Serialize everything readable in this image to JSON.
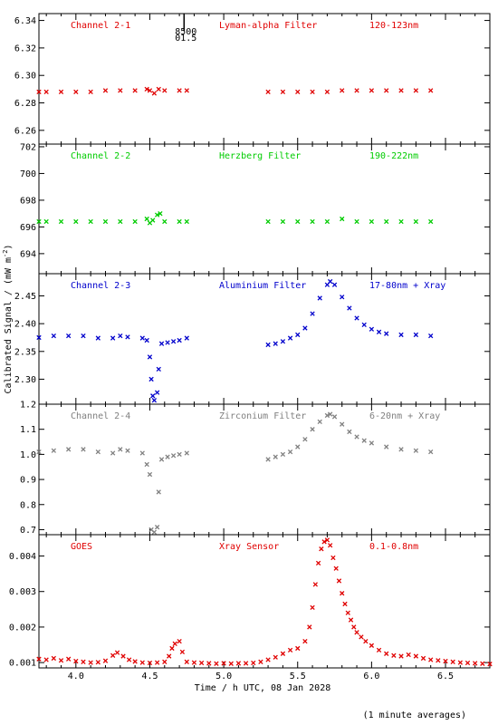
{
  "figure": {
    "ylabel": "Calibrated Signal / (mW m",
    "ylabel_sup": "-2",
    "ylabel_tail": ")",
    "xlabel": "Time / h UTC, 08 Jan 2028",
    "footnote": "(1 minute averages)",
    "marker_text_top": "8500",
    "marker_text_bottom": "01.5",
    "marker_x": 4.75
  },
  "chart_data": [
    {
      "type": "scatter",
      "left_label": "Channel 2-1",
      "mid_label": "Lyman-alpha Filter",
      "right_label": "120-123nm",
      "color": "#e00000",
      "marker": "cross",
      "xlim": [
        3.75,
        6.8
      ],
      "ylim": [
        6.25,
        6.345
      ],
      "yticks": [
        6.26,
        6.28,
        6.3,
        6.32,
        6.34
      ],
      "ytick_labels": [
        "6.26",
        "6.28",
        "6.30",
        "6.32",
        "6.34"
      ],
      "series": [
        {
          "values": [
            [
              3.75,
              6.288
            ],
            [
              3.8,
              6.288
            ],
            [
              3.9,
              6.288
            ],
            [
              4.0,
              6.288
            ],
            [
              4.1,
              6.288
            ],
            [
              4.2,
              6.289
            ],
            [
              4.3,
              6.289
            ],
            [
              4.4,
              6.289
            ],
            [
              4.48,
              6.29
            ],
            [
              4.5,
              6.289
            ],
            [
              4.53,
              6.287
            ],
            [
              4.56,
              6.29
            ],
            [
              4.6,
              6.289
            ],
            [
              4.7,
              6.289
            ],
            [
              4.75,
              6.289
            ],
            [
              5.3,
              6.288
            ],
            [
              5.4,
              6.288
            ],
            [
              5.5,
              6.288
            ],
            [
              5.6,
              6.288
            ],
            [
              5.7,
              6.288
            ],
            [
              5.8,
              6.289
            ],
            [
              5.9,
              6.289
            ],
            [
              6.0,
              6.289
            ],
            [
              6.1,
              6.289
            ],
            [
              6.2,
              6.289
            ],
            [
              6.3,
              6.289
            ],
            [
              6.4,
              6.289
            ]
          ]
        }
      ]
    },
    {
      "type": "scatter",
      "left_label": "Channel 2-2",
      "mid_label": "Herzberg Filter",
      "right_label": "190-222nm",
      "color": "#00cc00",
      "marker": "cross",
      "xlim": [
        3.75,
        6.8
      ],
      "ylim": [
        692.5,
        702.2
      ],
      "yticks": [
        694,
        696,
        698,
        700,
        702
      ],
      "ytick_labels": [
        "694",
        "696",
        "698",
        "700",
        "702"
      ],
      "series": [
        {
          "values": [
            [
              3.75,
              696.4
            ],
            [
              3.8,
              696.4
            ],
            [
              3.9,
              696.4
            ],
            [
              4.0,
              696.4
            ],
            [
              4.1,
              696.4
            ],
            [
              4.2,
              696.4
            ],
            [
              4.3,
              696.4
            ],
            [
              4.4,
              696.4
            ],
            [
              4.48,
              696.6
            ],
            [
              4.5,
              696.3
            ],
            [
              4.52,
              696.5
            ],
            [
              4.55,
              696.9
            ],
            [
              4.57,
              697.0
            ],
            [
              4.6,
              696.4
            ],
            [
              4.7,
              696.4
            ],
            [
              4.75,
              696.4
            ],
            [
              5.3,
              696.4
            ],
            [
              5.4,
              696.4
            ],
            [
              5.5,
              696.4
            ],
            [
              5.6,
              696.4
            ],
            [
              5.7,
              696.4
            ],
            [
              5.8,
              696.6
            ],
            [
              5.9,
              696.4
            ],
            [
              6.0,
              696.4
            ],
            [
              6.1,
              696.4
            ],
            [
              6.2,
              696.4
            ],
            [
              6.3,
              696.4
            ],
            [
              6.4,
              696.4
            ]
          ]
        }
      ]
    },
    {
      "type": "scatter",
      "left_label": "Channel 2-3",
      "mid_label": "Aluminium Filter",
      "right_label": "17-80nm + Xray",
      "color": "#0000cc",
      "marker": "cross",
      "xlim": [
        3.75,
        6.8
      ],
      "ylim": [
        2.255,
        2.49
      ],
      "yticks": [
        2.3,
        2.35,
        2.4,
        2.45
      ],
      "ytick_labels": [
        "2.30",
        "2.35",
        "2.40",
        "2.45"
      ],
      "series": [
        {
          "values": [
            [
              3.75,
              2.375
            ],
            [
              3.85,
              2.378
            ],
            [
              3.95,
              2.378
            ],
            [
              4.05,
              2.378
            ],
            [
              4.15,
              2.374
            ],
            [
              4.25,
              2.374
            ],
            [
              4.3,
              2.378
            ],
            [
              4.35,
              2.376
            ],
            [
              4.45,
              2.374
            ],
            [
              4.48,
              2.37
            ],
            [
              4.5,
              2.34
            ],
            [
              4.51,
              2.3
            ],
            [
              4.52,
              2.27
            ],
            [
              4.53,
              2.262
            ],
            [
              4.55,
              2.276
            ],
            [
              4.56,
              2.318
            ],
            [
              4.58,
              2.364
            ],
            [
              4.62,
              2.366
            ],
            [
              4.66,
              2.368
            ],
            [
              4.7,
              2.37
            ],
            [
              4.75,
              2.374
            ],
            [
              5.3,
              2.362
            ],
            [
              5.35,
              2.364
            ],
            [
              5.4,
              2.368
            ],
            [
              5.45,
              2.374
            ],
            [
              5.5,
              2.38
            ],
            [
              5.55,
              2.392
            ],
            [
              5.6,
              2.418
            ],
            [
              5.65,
              2.446
            ],
            [
              5.7,
              2.47
            ],
            [
              5.72,
              2.476
            ],
            [
              5.75,
              2.47
            ],
            [
              5.8,
              2.448
            ],
            [
              5.85,
              2.428
            ],
            [
              5.9,
              2.41
            ],
            [
              5.95,
              2.398
            ],
            [
              6.0,
              2.39
            ],
            [
              6.05,
              2.385
            ],
            [
              6.1,
              2.382
            ],
            [
              6.2,
              2.38
            ],
            [
              6.3,
              2.38
            ],
            [
              6.4,
              2.378
            ]
          ]
        }
      ]
    },
    {
      "type": "scatter",
      "left_label": "Channel 2-4",
      "mid_label": "Zirconium Filter",
      "right_label": "6-20nm + Xray",
      "color": "#808080",
      "marker": "cross",
      "xlim": [
        3.75,
        6.8
      ],
      "ylim": [
        0.68,
        1.2
      ],
      "yticks": [
        0.7,
        0.8,
        0.9,
        1.0,
        1.1,
        1.2
      ],
      "ytick_labels": [
        "0.7",
        "0.8",
        "0.9",
        "1.0",
        "1.1",
        "1.2"
      ],
      "series": [
        {
          "values": [
            [
              3.75,
              1.01
            ],
            [
              3.85,
              1.015
            ],
            [
              3.95,
              1.02
            ],
            [
              4.05,
              1.02
            ],
            [
              4.15,
              1.01
            ],
            [
              4.25,
              1.005
            ],
            [
              4.3,
              1.02
            ],
            [
              4.35,
              1.015
            ],
            [
              4.45,
              1.005
            ],
            [
              4.48,
              0.96
            ],
            [
              4.5,
              0.92
            ],
            [
              4.51,
              0.7
            ],
            [
              4.53,
              0.69
            ],
            [
              4.55,
              0.71
            ],
            [
              4.56,
              0.85
            ],
            [
              4.58,
              0.98
            ],
            [
              4.62,
              0.99
            ],
            [
              4.66,
              0.995
            ],
            [
              4.7,
              1.0
            ],
            [
              4.75,
              1.005
            ],
            [
              5.3,
              0.98
            ],
            [
              5.35,
              0.99
            ],
            [
              5.4,
              1.0
            ],
            [
              5.45,
              1.01
            ],
            [
              5.5,
              1.03
            ],
            [
              5.55,
              1.06
            ],
            [
              5.6,
              1.1
            ],
            [
              5.65,
              1.13
            ],
            [
              5.7,
              1.155
            ],
            [
              5.72,
              1.16
            ],
            [
              5.75,
              1.15
            ],
            [
              5.8,
              1.12
            ],
            [
              5.85,
              1.09
            ],
            [
              5.9,
              1.07
            ],
            [
              5.95,
              1.055
            ],
            [
              6.0,
              1.045
            ],
            [
              6.1,
              1.03
            ],
            [
              6.2,
              1.02
            ],
            [
              6.3,
              1.015
            ],
            [
              6.4,
              1.01
            ]
          ]
        }
      ]
    },
    {
      "type": "scatter",
      "left_label": "GOES",
      "mid_label": "Xray Sensor",
      "right_label": "0.1-0.8nm",
      "color": "#e00000",
      "marker": "cross",
      "xlim": [
        3.75,
        6.8
      ],
      "ylim": [
        0.00085,
        0.0046
      ],
      "yticks": [
        0.001,
        0.002,
        0.003,
        0.004
      ],
      "ytick_labels": [
        "0.001",
        "0.002",
        "0.003",
        "0.004"
      ],
      "xticks": [
        4.0,
        4.5,
        5.0,
        5.5,
        6.0,
        6.5
      ],
      "xtick_labels": [
        "4.0",
        "4.5",
        "5.0",
        "5.5",
        "6.0",
        "6.5"
      ],
      "series": [
        {
          "values": [
            [
              3.75,
              0.0011
            ],
            [
              3.8,
              0.00108
            ],
            [
              3.85,
              0.00112
            ],
            [
              3.9,
              0.00106
            ],
            [
              3.95,
              0.0011
            ],
            [
              4.0,
              0.00104
            ],
            [
              4.05,
              0.00102
            ],
            [
              4.1,
              0.001
            ],
            [
              4.15,
              0.00101
            ],
            [
              4.2,
              0.00105
            ],
            [
              4.25,
              0.0012
            ],
            [
              4.28,
              0.00128
            ],
            [
              4.32,
              0.00118
            ],
            [
              4.36,
              0.00108
            ],
            [
              4.4,
              0.00103
            ],
            [
              4.45,
              0.001
            ],
            [
              4.5,
              0.00099
            ],
            [
              4.55,
              0.001
            ],
            [
              4.6,
              0.00102
            ],
            [
              4.63,
              0.00118
            ],
            [
              4.65,
              0.0014
            ],
            [
              4.67,
              0.00153
            ],
            [
              4.7,
              0.0016
            ],
            [
              4.72,
              0.0013
            ],
            [
              4.75,
              0.00102
            ],
            [
              4.8,
              0.001
            ],
            [
              4.85,
              0.00099
            ],
            [
              4.9,
              0.00098
            ],
            [
              4.95,
              0.00097
            ],
            [
              5.0,
              0.00098
            ],
            [
              5.05,
              0.00097
            ],
            [
              5.1,
              0.00098
            ],
            [
              5.15,
              0.00098
            ],
            [
              5.2,
              0.00099
            ],
            [
              5.25,
              0.00102
            ],
            [
              5.3,
              0.00108
            ],
            [
              5.35,
              0.00115
            ],
            [
              5.4,
              0.00125
            ],
            [
              5.45,
              0.00135
            ],
            [
              5.5,
              0.0014
            ],
            [
              5.55,
              0.0016
            ],
            [
              5.58,
              0.002
            ],
            [
              5.6,
              0.00255
            ],
            [
              5.62,
              0.0032
            ],
            [
              5.64,
              0.0038
            ],
            [
              5.66,
              0.0042
            ],
            [
              5.68,
              0.0044
            ],
            [
              5.7,
              0.00445
            ],
            [
              5.72,
              0.0043
            ],
            [
              5.74,
              0.00395
            ],
            [
              5.76,
              0.00365
            ],
            [
              5.78,
              0.0033
            ],
            [
              5.8,
              0.00295
            ],
            [
              5.82,
              0.00265
            ],
            [
              5.84,
              0.0024
            ],
            [
              5.86,
              0.0022
            ],
            [
              5.88,
              0.002
            ],
            [
              5.9,
              0.00185
            ],
            [
              5.93,
              0.00172
            ],
            [
              5.96,
              0.0016
            ],
            [
              6.0,
              0.00148
            ],
            [
              6.05,
              0.00135
            ],
            [
              6.1,
              0.00125
            ],
            [
              6.15,
              0.0012
            ],
            [
              6.2,
              0.00118
            ],
            [
              6.25,
              0.00122
            ],
            [
              6.3,
              0.00118
            ],
            [
              6.35,
              0.00112
            ],
            [
              6.4,
              0.00108
            ],
            [
              6.45,
              0.00106
            ],
            [
              6.5,
              0.00104
            ],
            [
              6.55,
              0.00102
            ],
            [
              6.6,
              0.001
            ],
            [
              6.65,
              0.00099
            ],
            [
              6.7,
              0.00098
            ],
            [
              6.75,
              0.00097
            ],
            [
              6.8,
              0.00096
            ]
          ]
        }
      ]
    }
  ]
}
